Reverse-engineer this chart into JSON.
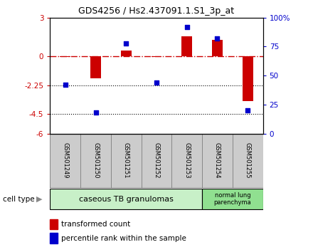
{
  "title": "GDS4256 / Hs2.437091.1.S1_3p_at",
  "samples": [
    "GSM501249",
    "GSM501250",
    "GSM501251",
    "GSM501252",
    "GSM501253",
    "GSM501254",
    "GSM501255"
  ],
  "transformed_count": [
    -0.07,
    -1.7,
    0.45,
    -0.05,
    1.55,
    1.3,
    -3.5
  ],
  "percentile_rank": [
    42,
    18,
    78,
    44,
    92,
    82,
    20
  ],
  "ylim_left": [
    -6,
    3
  ],
  "ylim_right": [
    0,
    100
  ],
  "yticks_left": [
    3,
    0,
    -2.25,
    -4.5,
    -6
  ],
  "yticks_right": [
    100,
    75,
    50,
    25,
    0
  ],
  "ytick_labels_left": [
    "3",
    "0",
    "-2.25",
    "-4.5",
    "-6"
  ],
  "ytick_labels_right": [
    "100%",
    "75",
    "50",
    "25",
    "0"
  ],
  "hline_y": 0,
  "dotted_hlines": [
    -2.25,
    -4.5
  ],
  "bar_color": "#cc0000",
  "dot_color": "#0000cc",
  "cell_types": [
    {
      "label": "caseous TB granulomas",
      "samples": [
        0,
        1,
        2,
        3,
        4
      ],
      "color": "#c8f0c8"
    },
    {
      "label": "normal lung\nparenchyma",
      "samples": [
        5,
        6
      ],
      "color": "#90e090"
    }
  ],
  "legend_bar_label": "transformed count",
  "legend_dot_label": "percentile rank within the sample",
  "cell_type_label": "cell type",
  "sample_box_color": "#cccccc",
  "sample_box_edge": "#888888"
}
